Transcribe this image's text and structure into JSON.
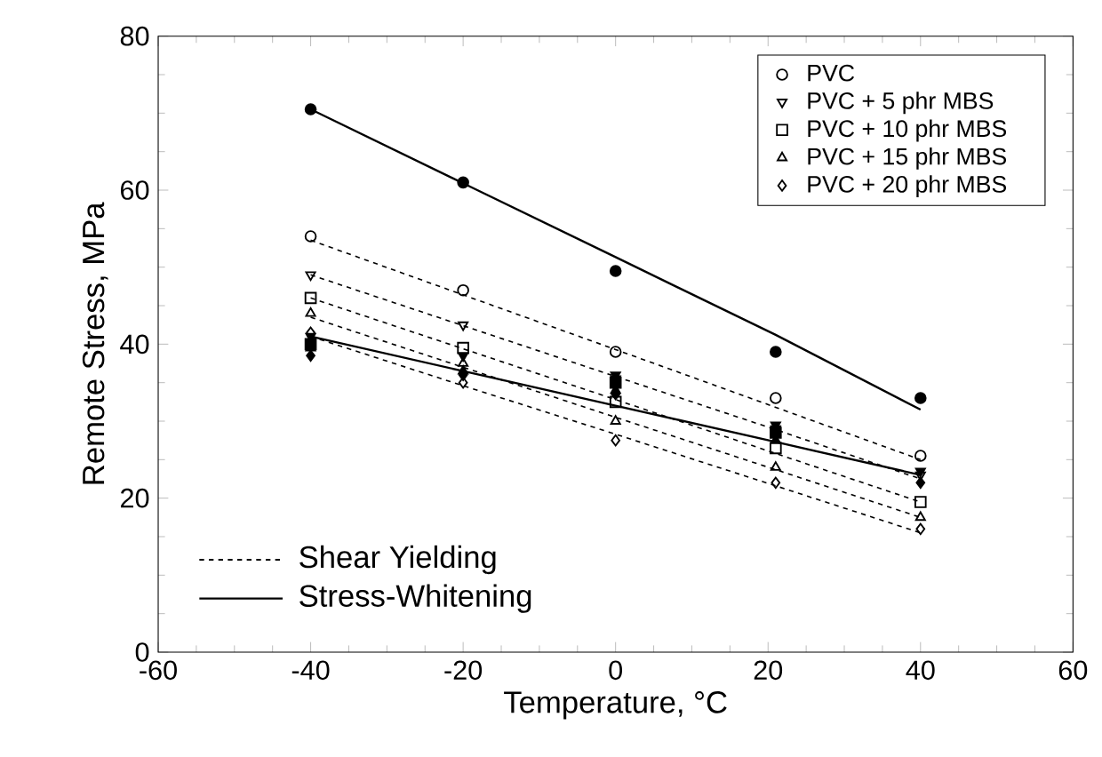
{
  "chart_data": {
    "type": "scatter",
    "xlabel": "Temperature, °C",
    "ylabel": "Remote Stress, MPa",
    "x": [
      -40,
      -20,
      0,
      21,
      40
    ],
    "series": [
      {
        "color": "#000000",
        "marker": "circle",
        "values": [
          70.5,
          61,
          49.5,
          39,
          33
        ]
      },
      {
        "color": "#000000",
        "marker": "triangle",
        "values": [
          41,
          38.5,
          36,
          29.5,
          23.5
        ]
      },
      {
        "color": "#000000",
        "marker": "square",
        "values": [
          40,
          null,
          35,
          28.5,
          null
        ]
      },
      {
        "color": "#000000",
        "marker": "triangle",
        "values": [
          39.5,
          36.5,
          34,
          27.5,
          null
        ]
      },
      {
        "color": "#000000",
        "marker": "diamond",
        "values": [
          38.5,
          36,
          33.5,
          null,
          22
        ]
      },
      {
        "name": "PVC",
        "color": "#000000",
        "marker": "circle",
        "values": [
          54,
          47,
          39,
          33,
          25.5
        ]
      },
      {
        "name": "PVC +  5 phr MBS",
        "color": "#000000",
        "marker": "triangle",
        "values": [
          49,
          42.5,
          35.5,
          29,
          23
        ]
      },
      {
        "name": "PVC + 10 phr MBS",
        "color": "#000000",
        "marker": "square",
        "values": [
          46,
          39.5,
          32.5,
          26.5,
          19.5
        ]
      },
      {
        "name": "PVC + 15 phr MBS",
        "color": "#000000",
        "marker": "triangle",
        "values": [
          44,
          37.5,
          30,
          24,
          17.5
        ]
      },
      {
        "name": "PVC + 20 phr MBS",
        "color": "#000000",
        "marker": "diamond",
        "values": [
          41.5,
          35,
          27.5,
          22,
          16
        ]
      },
      {
        "type": "line",
        "name": "Shear Yielding",
        "line_style": "dotted",
        "marker": "none",
        "color": "#000000",
        "values": [
          53.5,
          46.4,
          39.3,
          31.8,
          25
        ]
      },
      {
        "type": "line",
        "line_style": "dotted",
        "marker": "none",
        "color": "#000000",
        "values": [
          49,
          42.4,
          35.8,
          28.9,
          22.5
        ]
      },
      {
        "type": "line",
        "line_style": "dotted",
        "marker": "none",
        "color": "#000000",
        "values": [
          46,
          39.4,
          32.8,
          25.8,
          19.5
        ]
      },
      {
        "type": "line",
        "line_style": "dotted",
        "marker": "none",
        "color": "#000000",
        "values": [
          43.5,
          37,
          30.5,
          23.7,
          17.5
        ]
      },
      {
        "type": "line",
        "line_style": "dotted",
        "marker": "none",
        "color": "#000000",
        "values": [
          41,
          34.6,
          28.3,
          21.6,
          15.5
        ]
      },
      {
        "type": "line",
        "name": "Stress-Whitening",
        "line_style": "solid",
        "marker": "none",
        "color": "#000000",
        "values": [
          70.5,
          60.9,
          51.3,
          41.2,
          31.5
        ]
      },
      {
        "type": "line",
        "line_style": "solid",
        "marker": "none",
        "color": "#000000",
        "values": [
          41,
          36.5,
          32,
          27.3,
          23
        ]
      }
    ],
    "xlim": [
      -60,
      60
    ],
    "xticks": [
      -60,
      -40,
      -20,
      0,
      20,
      40,
      60
    ],
    "ylim": [
      0,
      80
    ],
    "yticks": [
      0,
      20,
      40,
      60,
      80
    ],
    "grid": false,
    "legend": "top right"
  }
}
